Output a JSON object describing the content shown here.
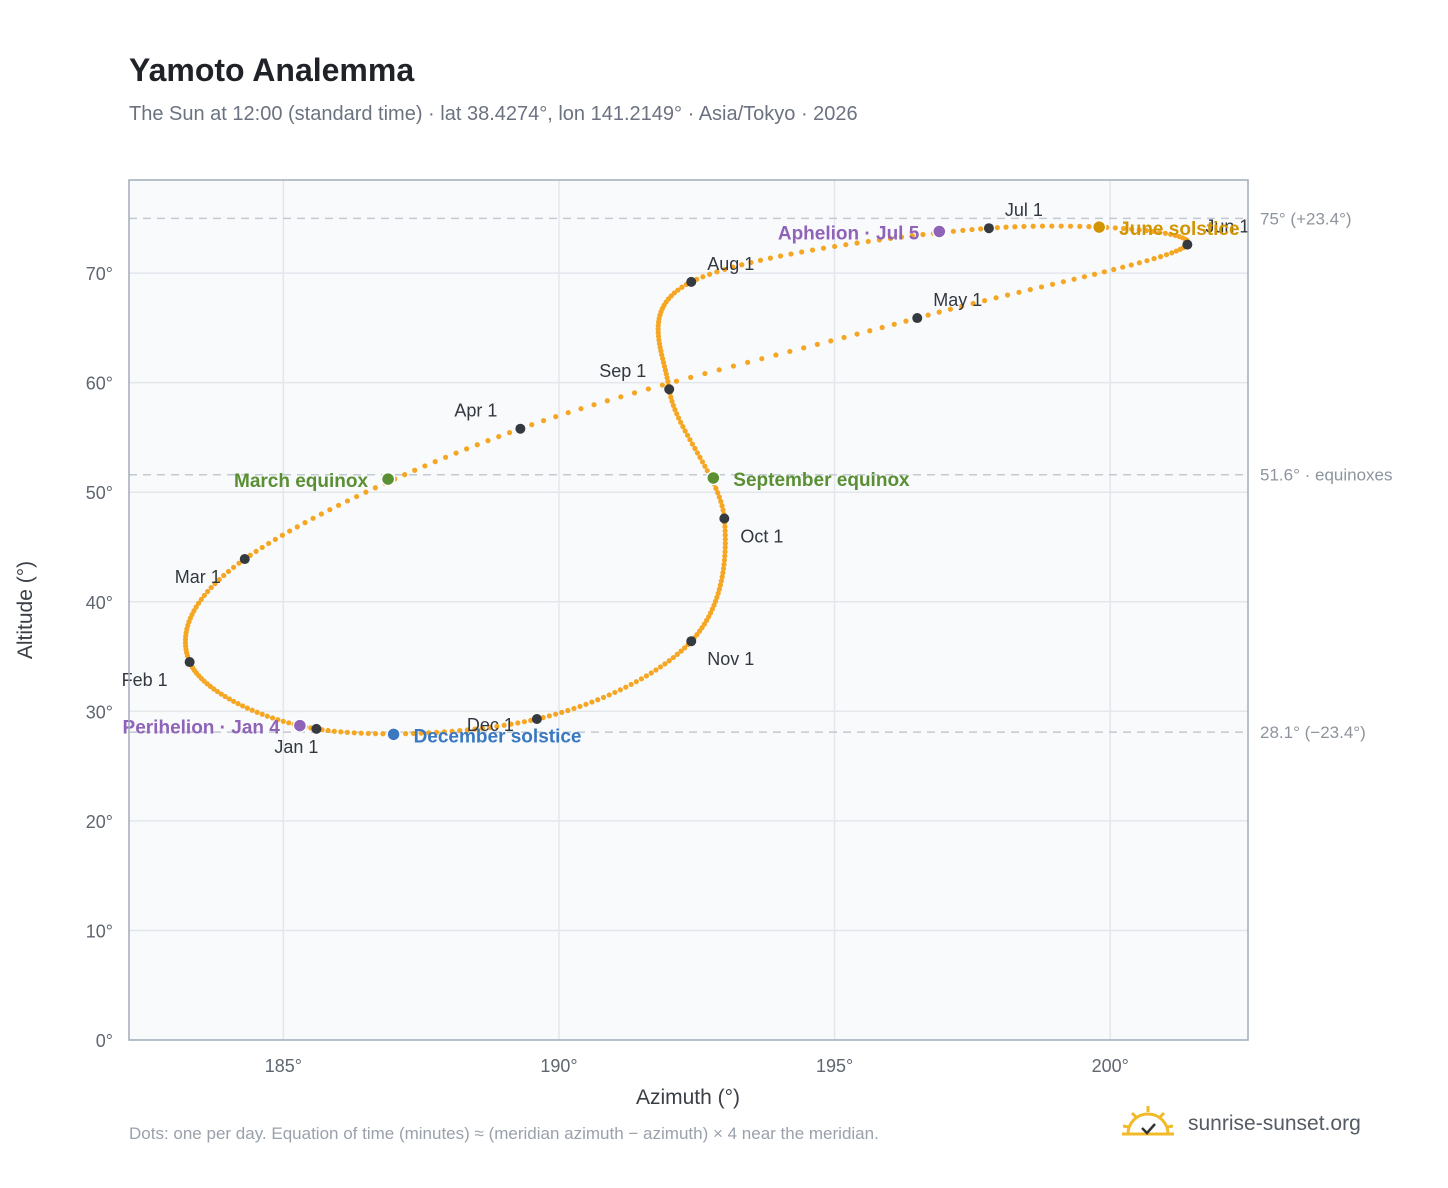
{
  "header": {
    "title": "Yamoto Analemma",
    "subtitle": "The Sun at 12:00 (standard time) · lat 38.4274°, lon 141.2149° · Asia/Tokyo · 2026"
  },
  "footer": {
    "note": "Dots: one per day. Equation of time (minutes) ≈ (meridian azimuth − azimuth) × 4 near the meridian.",
    "brand": "sunrise-sunset.org"
  },
  "chart_data": {
    "type": "scatter",
    "title": "Yamoto Analemma",
    "xlabel": "Azimuth (°)",
    "ylabel": "Altitude (°)",
    "xlim": [
      182.2,
      202.5
    ],
    "ylim": [
      0,
      78.5
    ],
    "x_ticks": [
      185,
      190,
      195,
      200
    ],
    "x_tick_labels": [
      "185°",
      "190°",
      "195°",
      "200°"
    ],
    "y_ticks": [
      0,
      10,
      20,
      30,
      40,
      50,
      60,
      70
    ],
    "y_tick_labels": [
      "0°",
      "10°",
      "20°",
      "30°",
      "40°",
      "50°",
      "60°",
      "70°"
    ],
    "grid": true,
    "colors": {
      "path": "#f5a623",
      "month": "#343a40",
      "equinox": "#5a8f33",
      "june_solstice": "#d29400",
      "december_solstice": "#3a78c0",
      "apsis": "#8e63b8",
      "reference": "#c3c9d1"
    },
    "reference_lines": [
      {
        "y": 75.0,
        "label": "75° (+23.4°)"
      },
      {
        "y": 51.6,
        "label": "51.6° · equinoxes"
      },
      {
        "y": 28.1,
        "label": "28.1° (−23.4°)"
      }
    ],
    "months": [
      {
        "label": "Jan 1",
        "az": 185.6,
        "alt": 28.4
      },
      {
        "label": "Feb 1",
        "az": 183.3,
        "alt": 34.5
      },
      {
        "label": "Mar 1",
        "az": 184.3,
        "alt": 43.9
      },
      {
        "label": "Apr 1",
        "az": 189.3,
        "alt": 55.8
      },
      {
        "label": "May 1",
        "az": 196.5,
        "alt": 65.9
      },
      {
        "label": "Jun 1",
        "az": 201.4,
        "alt": 72.6
      },
      {
        "label": "Jul 1",
        "az": 197.8,
        "alt": 74.1
      },
      {
        "label": "Aug 1",
        "az": 192.4,
        "alt": 69.2
      },
      {
        "label": "Sep 1",
        "az": 192.0,
        "alt": 59.4
      },
      {
        "label": "Oct 1",
        "az": 193.0,
        "alt": 47.6
      },
      {
        "label": "Nov 1",
        "az": 192.4,
        "alt": 36.4
      },
      {
        "label": "Dec 1",
        "az": 189.6,
        "alt": 29.3
      }
    ],
    "events": [
      {
        "label": "March equinox",
        "az": 186.9,
        "alt": 51.2,
        "kind": "equinox"
      },
      {
        "label": "June solstice",
        "az": 199.8,
        "alt": 74.2,
        "kind": "june_solstice"
      },
      {
        "label": "September equinox",
        "az": 192.8,
        "alt": 51.3,
        "kind": "equinox"
      },
      {
        "label": "December solstice",
        "az": 187.0,
        "alt": 27.9,
        "kind": "december_solstice"
      },
      {
        "label": "Perihelion · Jan 4",
        "az": 185.3,
        "alt": 28.7,
        "kind": "apsis"
      },
      {
        "label": "Aphelion · Jul 5",
        "az": 196.9,
        "alt": 73.8,
        "kind": "apsis"
      }
    ]
  }
}
